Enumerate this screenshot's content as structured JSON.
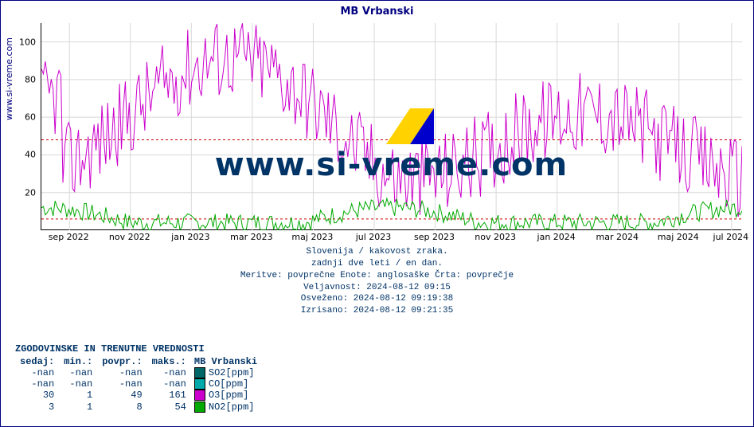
{
  "title": "MB Vrbanski",
  "ylabel": "www.si-vreme.com",
  "watermark": "www.si-vreme.com",
  "colors": {
    "frame": "#000080",
    "text_primary": "#003366",
    "grid": "#d8d8d8",
    "plot_bg": "#ffffff",
    "ref_line": "#cc0000",
    "series_o3": "#cc00cc",
    "series_no2": "#00aa00",
    "series_so2": "#006666",
    "series_co": "#00aaaa",
    "logo_yellow": "#ffd200",
    "logo_blue": "#0000cc"
  },
  "chart": {
    "type": "line",
    "ylim": [
      0,
      110
    ],
    "yticks": [
      20,
      40,
      60,
      80,
      100
    ],
    "x_labels": [
      "sep 2022",
      "nov 2022",
      "jan 2023",
      "mar 2023",
      "maj 2023",
      "jul 2023",
      "sep 2023",
      "nov 2023",
      "jan 2024",
      "mar 2024",
      "maj 2024",
      "jul 2024"
    ],
    "x_positions_pct": [
      4,
      12.7,
      21.4,
      30.1,
      38.8,
      47.5,
      56.2,
      64.9,
      73.6,
      82.3,
      91.0,
      98.5
    ],
    "ref_lines": [
      48,
      6
    ]
  },
  "metadata": {
    "line1": "Slovenija / kakovost zraka.",
    "line2": "zadnji dve leti / en dan.",
    "line3": "Meritve: povprečne  Enote: anglosaške  Črta: povprečje",
    "line4": "Veljavnost: 2024-08-12 09:15",
    "line5": "Osveženo: 2024-08-12 09:19:38",
    "line6": "Izrisano: 2024-08-12 09:21:35"
  },
  "table": {
    "title": "ZGODOVINSKE IN TRENUTNE VREDNOSTI",
    "columns": [
      "sedaj:",
      "min.:",
      "povpr.:",
      "maks.:"
    ],
    "station": "MB Vrbanski",
    "rows": [
      {
        "sedaj": "-nan",
        "min": "-nan",
        "povpr": "-nan",
        "maks": "-nan",
        "legend": "SO2[ppm]",
        "color": "#006666"
      },
      {
        "sedaj": "-nan",
        "min": "-nan",
        "povpr": "-nan",
        "maks": "-nan",
        "legend": "CO[ppm]",
        "color": "#00aaaa"
      },
      {
        "sedaj": "30",
        "min": "1",
        "povpr": "49",
        "maks": "161",
        "legend": "O3[ppm]",
        "color": "#cc00cc"
      },
      {
        "sedaj": "3",
        "min": "1",
        "povpr": "8",
        "maks": "54",
        "legend": "NO2[ppm]",
        "color": "#00aa00"
      }
    ]
  }
}
